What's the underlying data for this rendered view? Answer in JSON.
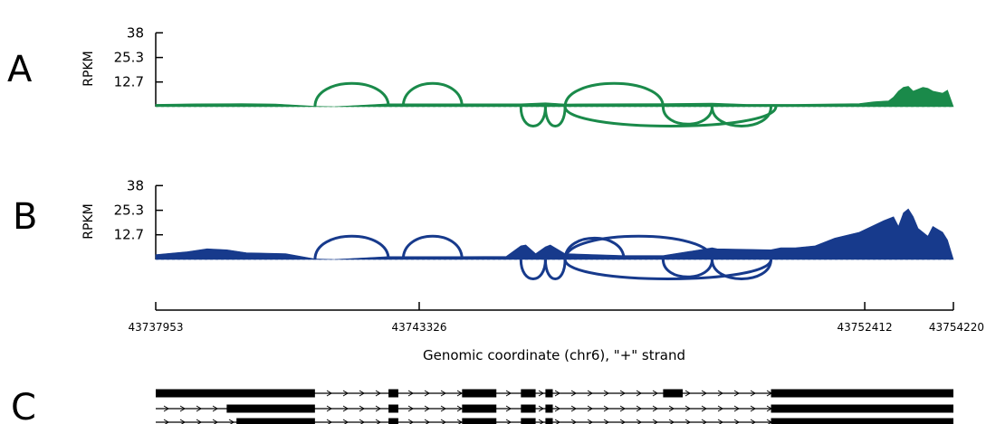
{
  "chart_data": {
    "type": "area",
    "xlabel": "Genomic coordinate (chr6), \"+\" strand",
    "xlim": [
      43737953,
      43754220
    ],
    "x_ticks": [
      "43737953",
      "43743326",
      "43752412",
      "43754220"
    ],
    "x_tick_values": [
      43737953,
      43743326,
      43752412,
      43754220
    ],
    "colors": {
      "A": "#1a8a4a",
      "B": "#173a8c",
      "C": "#000000"
    },
    "panels": [
      {
        "letter": "A",
        "ylabel": "RPKM",
        "ylim": [
          0,
          38
        ],
        "y_ticks": [
          "38",
          "25.3",
          "12.7"
        ],
        "y_tick_values": [
          38,
          25.3,
          12.7
        ],
        "coverage": [
          [
            43737953,
            1.2
          ],
          [
            43738800,
            1.5
          ],
          [
            43739700,
            1.6
          ],
          [
            43740400,
            1.4
          ],
          [
            43741200,
            0.2
          ],
          [
            43741600,
            0
          ],
          [
            43742700,
            1.5
          ],
          [
            43743000,
            1.5
          ],
          [
            43744200,
            1.5
          ],
          [
            43745400,
            1.5
          ],
          [
            43745900,
            2.0
          ],
          [
            43746300,
            1.4
          ],
          [
            43746900,
            1.5
          ],
          [
            43748300,
            1.6
          ],
          [
            43749300,
            1.8
          ],
          [
            43750000,
            1.2
          ],
          [
            43751000,
            1.2
          ],
          [
            43752000,
            1.5
          ],
          [
            43752300,
            1.6
          ],
          [
            43752600,
            2.5
          ],
          [
            43752900,
            3.0
          ],
          [
            43753000,
            5.0
          ],
          [
            43753100,
            8.0
          ],
          [
            43753200,
            10.0
          ],
          [
            43753300,
            10.5
          ],
          [
            43753400,
            8.0
          ],
          [
            43753500,
            9.0
          ],
          [
            43753600,
            10.0
          ],
          [
            43753700,
            9.5
          ],
          [
            43753800,
            8.0
          ],
          [
            43754000,
            7.0
          ],
          [
            43754100,
            8.5
          ],
          [
            43754220,
            0
          ]
        ],
        "junctions": [
          {
            "start": 43741200,
            "end": 43742700,
            "side": "top",
            "height": 12.0
          },
          {
            "start": 43743000,
            "end": 43744200,
            "side": "top",
            "height": 12.0
          },
          {
            "start": 43745400,
            "end": 43745900,
            "side": "bottom",
            "height": 10.0
          },
          {
            "start": 43745900,
            "end": 43746300,
            "side": "bottom",
            "height": 10.0
          },
          {
            "start": 43746300,
            "end": 43748300,
            "side": "top",
            "height": 12.0
          },
          {
            "start": 43746300,
            "end": 43750600,
            "side": "bottom",
            "height": 10.0
          },
          {
            "start": 43748300,
            "end": 43749300,
            "side": "bottom",
            "height": 9.0
          },
          {
            "start": 43749300,
            "end": 43750500,
            "side": "bottom",
            "height": 10.0
          }
        ]
      },
      {
        "letter": "B",
        "ylabel": "RPKM",
        "ylim": [
          0,
          38
        ],
        "y_ticks": [
          "38",
          "25.3",
          "12.7"
        ],
        "y_tick_values": [
          38,
          25.3,
          12.7
        ],
        "coverage": [
          [
            43737953,
            2.5
          ],
          [
            43738600,
            4.0
          ],
          [
            43739000,
            5.5
          ],
          [
            43739400,
            5.0
          ],
          [
            43739800,
            3.5
          ],
          [
            43740600,
            3.0
          ],
          [
            43741200,
            0.3
          ],
          [
            43741600,
            0
          ],
          [
            43742700,
            1.5
          ],
          [
            43743000,
            1.5
          ],
          [
            43744200,
            1.5
          ],
          [
            43745100,
            1.6
          ],
          [
            43745400,
            7.0
          ],
          [
            43745500,
            7.5
          ],
          [
            43745700,
            3.0
          ],
          [
            43745900,
            6.5
          ],
          [
            43746000,
            7.5
          ],
          [
            43746300,
            3.0
          ],
          [
            43747500,
            2.0
          ],
          [
            43748300,
            2.0
          ],
          [
            43749300,
            6.0
          ],
          [
            43749400,
            5.5
          ],
          [
            43750500,
            5.0
          ],
          [
            43750700,
            6.0
          ],
          [
            43751000,
            6.0
          ],
          [
            43751400,
            7.0
          ],
          [
            43751800,
            11.0
          ],
          [
            43752300,
            14.0
          ],
          [
            43752800,
            20.0
          ],
          [
            43753000,
            22.0
          ],
          [
            43753100,
            17.0
          ],
          [
            43753200,
            24.0
          ],
          [
            43753300,
            26.0
          ],
          [
            43753400,
            22.0
          ],
          [
            43753500,
            16.0
          ],
          [
            43753700,
            12.0
          ],
          [
            43753800,
            17.0
          ],
          [
            43754000,
            14.0
          ],
          [
            43754100,
            10.0
          ],
          [
            43754220,
            0
          ]
        ],
        "junctions": [
          {
            "start": 43741200,
            "end": 43742700,
            "side": "top",
            "height": 12.0
          },
          {
            "start": 43743000,
            "end": 43744200,
            "side": "top",
            "height": 12.0
          },
          {
            "start": 43745400,
            "end": 43745900,
            "side": "bottom",
            "height": 10.0
          },
          {
            "start": 43745900,
            "end": 43746300,
            "side": "bottom",
            "height": 10.0
          },
          {
            "start": 43746300,
            "end": 43747500,
            "side": "top",
            "height": 11.0
          },
          {
            "start": 43746300,
            "end": 43749300,
            "side": "top",
            "height": 12.0
          },
          {
            "start": 43746300,
            "end": 43750500,
            "side": "bottom",
            "height": 10.0
          },
          {
            "start": 43748300,
            "end": 43749300,
            "side": "bottom",
            "height": 9.0
          },
          {
            "start": 43749300,
            "end": 43750500,
            "side": "bottom",
            "height": 10.0
          }
        ]
      }
    ],
    "transcripts": {
      "letter": "C",
      "rows": [
        {
          "start": 43737953,
          "end": 43754220,
          "exons": [
            [
              43737953,
              43741200
            ],
            [
              43742700,
              43742900
            ],
            [
              43744200,
              43744900
            ],
            [
              43745400,
              43745700
            ],
            [
              43745900,
              43746050
            ],
            [
              43748300,
              43748700
            ],
            [
              43750500,
              43754220
            ]
          ]
        },
        {
          "start": 43737953,
          "end": 43754220,
          "exons": [
            [
              43739400,
              43741200
            ],
            [
              43742700,
              43742900
            ],
            [
              43744200,
              43744900
            ],
            [
              43745400,
              43745700
            ],
            [
              43745900,
              43746050
            ],
            [
              43750500,
              43754220
            ]
          ]
        },
        {
          "start": 43737953,
          "end": 43754220,
          "exons": [
            [
              43739600,
              43741200
            ],
            [
              43742700,
              43742900
            ],
            [
              43744200,
              43744900
            ],
            [
              43745400,
              43745700
            ],
            [
              43745900,
              43746050
            ],
            [
              43750500,
              43754220
            ]
          ]
        }
      ]
    }
  }
}
